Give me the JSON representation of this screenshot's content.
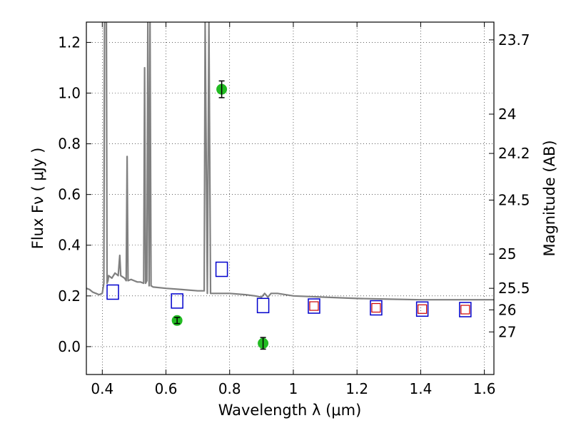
{
  "chart_data": {
    "type": "scatter",
    "xlabel": "Wavelength  λ (μm)",
    "ylabel": "Flux  Fν  ( μJy )",
    "y2label": "Magnitude (AB)",
    "xlim": [
      0.35,
      1.63
    ],
    "ylim": [
      -0.11,
      1.28
    ],
    "grid": true,
    "x_ticks": [
      0.4,
      0.6,
      0.8,
      1.0,
      1.2,
      1.4,
      1.6
    ],
    "x_tick_labels": [
      "0.4",
      "0.6",
      "0.8",
      "1",
      "1.2",
      "1.4",
      "1.6"
    ],
    "y_ticks": [
      0.0,
      0.2,
      0.4,
      0.6,
      0.8,
      1.0,
      1.2
    ],
    "y_tick_labels": [
      "0.0",
      "0.2",
      "0.4",
      "0.6",
      "0.8",
      "1.0",
      "1.2"
    ],
    "y2_tick_labels": [
      "23.7",
      "24",
      "24.2",
      "24.5",
      "25",
      "25.5",
      "26",
      "27"
    ],
    "y2_tick_flux": [
      1.21,
      0.917,
      0.762,
      0.578,
      0.365,
      0.23,
      0.145,
      0.058
    ],
    "colors": {
      "model": "#808080",
      "observed_fill": "#22bb22",
      "model_box": "#0000cc",
      "model_box_inner": "#cc0000",
      "errorbar": "#000000"
    },
    "series": [
      {
        "kind": "line",
        "points": [
          [
            0.35,
            0.23
          ],
          [
            0.36,
            0.225
          ],
          [
            0.37,
            0.215
          ],
          [
            0.38,
            0.21
          ],
          [
            0.39,
            0.205
          ],
          [
            0.4,
            0.21
          ],
          [
            0.405,
            0.25
          ],
          [
            0.407,
            1.28
          ],
          [
            0.413,
            1.28
          ],
          [
            0.415,
            0.25
          ],
          [
            0.418,
            0.26
          ],
          [
            0.42,
            0.28
          ],
          [
            0.43,
            0.27
          ],
          [
            0.44,
            0.29
          ],
          [
            0.45,
            0.28
          ],
          [
            0.455,
            0.36
          ],
          [
            0.458,
            0.28
          ],
          [
            0.47,
            0.27
          ],
          [
            0.475,
            0.26
          ],
          [
            0.478,
            0.75
          ],
          [
            0.481,
            0.26
          ],
          [
            0.49,
            0.265
          ],
          [
            0.5,
            0.26
          ],
          [
            0.51,
            0.255
          ],
          [
            0.52,
            0.255
          ],
          [
            0.53,
            0.25
          ],
          [
            0.533,
            1.1
          ],
          [
            0.536,
            0.25
          ],
          [
            0.54,
            0.26
          ],
          [
            0.543,
            1.28
          ],
          [
            0.547,
            0.24
          ],
          [
            0.55,
            1.28
          ],
          [
            0.553,
            0.24
          ],
          [
            0.56,
            0.235
          ],
          [
            0.6,
            0.23
          ],
          [
            0.65,
            0.225
          ],
          [
            0.7,
            0.22
          ],
          [
            0.72,
            0.22
          ],
          [
            0.723,
            1.28
          ],
          [
            0.73,
            0.21
          ],
          [
            0.735,
            1.28
          ],
          [
            0.74,
            0.21
          ],
          [
            0.76,
            0.21
          ],
          [
            0.8,
            0.21
          ],
          [
            0.85,
            0.205
          ],
          [
            0.88,
            0.2
          ],
          [
            0.9,
            0.195
          ],
          [
            0.91,
            0.21
          ],
          [
            0.92,
            0.195
          ],
          [
            0.93,
            0.21
          ],
          [
            0.95,
            0.21
          ],
          [
            1.0,
            0.2
          ],
          [
            1.1,
            0.195
          ],
          [
            1.2,
            0.19
          ],
          [
            1.3,
            0.187
          ],
          [
            1.4,
            0.185
          ],
          [
            1.5,
            0.185
          ],
          [
            1.63,
            0.185
          ]
        ]
      },
      {
        "kind": "model_boxes",
        "points": [
          [
            0.433,
            0.215
          ],
          [
            0.635,
            0.18
          ],
          [
            0.775,
            0.305
          ],
          [
            0.905,
            0.162
          ],
          [
            1.065,
            0.16
          ],
          [
            1.26,
            0.153
          ],
          [
            1.405,
            0.148
          ],
          [
            1.54,
            0.146
          ]
        ]
      },
      {
        "kind": "model_boxes_inner",
        "points": [
          [
            1.065,
            0.16
          ],
          [
            1.26,
            0.153
          ],
          [
            1.405,
            0.148
          ],
          [
            1.54,
            0.146
          ]
        ]
      },
      {
        "kind": "observed",
        "points": [
          [
            0.635,
            0.103,
            0.012
          ],
          [
            0.775,
            1.015,
            0.033
          ],
          [
            0.905,
            0.013,
            0.023
          ]
        ]
      }
    ]
  }
}
